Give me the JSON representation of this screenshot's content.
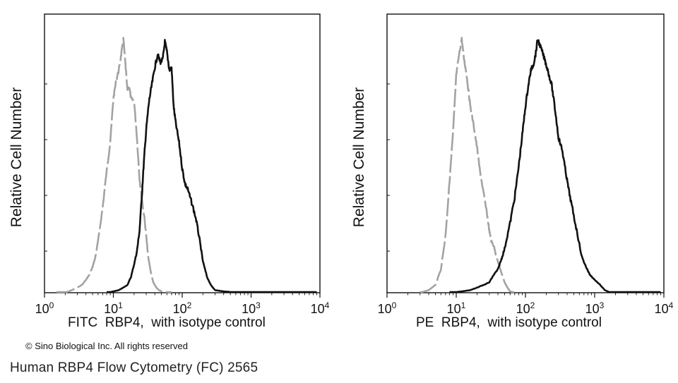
{
  "chart_data": [
    {
      "type": "line",
      "panel": "left",
      "xscale": "log",
      "xlim": [
        1,
        10000
      ],
      "xticks": [
        "10^0",
        "10^1",
        "10^2",
        "10^3",
        "10^4"
      ],
      "xlabel": "FITC  RBP4,  with isotype control",
      "ylabel": "Relative Cell Number",
      "ylim": [
        0,
        100
      ],
      "series": [
        {
          "name": "isotype control",
          "style": "dashed",
          "color": "#a3a3a3",
          "x": [
            1.5,
            2,
            2.5,
            3,
            3.5,
            4,
            4.5,
            5,
            5.5,
            6,
            7,
            8,
            9,
            10,
            11,
            12,
            13,
            14,
            15,
            16,
            17,
            18,
            20,
            22,
            24,
            26,
            28,
            30,
            32,
            35,
            38,
            42,
            46,
            50,
            60,
            70
          ],
          "y": [
            0,
            0,
            1,
            2,
            3,
            5,
            7,
            10,
            14,
            20,
            33,
            47,
            58,
            75,
            82,
            86,
            92,
            98,
            88,
            78,
            80,
            75,
            74,
            60,
            44,
            36,
            30,
            22,
            14,
            8,
            4,
            2,
            1,
            0.5,
            0,
            0
          ]
        },
        {
          "name": "RBP4",
          "style": "solid",
          "color": "#111111",
          "x": [
            8,
            10,
            12,
            14,
            16,
            18,
            20,
            22,
            24,
            26,
            28,
            30,
            33,
            36,
            40,
            44,
            48,
            52,
            56,
            60,
            65,
            70,
            75,
            80,
            90,
            100,
            110,
            120,
            140,
            160,
            180,
            200,
            230,
            260,
            300,
            400,
            700,
            1000,
            3000,
            9000
          ],
          "y": [
            0,
            0.5,
            1,
            2,
            3,
            6,
            11,
            16,
            24,
            38,
            52,
            63,
            74,
            80,
            87,
            92,
            89,
            90,
            97,
            93,
            86,
            87,
            72,
            66,
            58,
            48,
            42,
            40,
            34,
            28,
            20,
            12,
            6,
            3,
            1,
            0.5,
            0,
            0,
            0,
            0
          ]
        }
      ]
    },
    {
      "type": "line",
      "panel": "right",
      "xscale": "log",
      "xlim": [
        1,
        10000
      ],
      "xticks": [
        "10^0",
        "10^1",
        "10^2",
        "10^3",
        "10^4"
      ],
      "xlabel": "PE  RBP4,  with isotype control",
      "ylabel": "Relative Cell Number",
      "ylim": [
        0,
        100
      ],
      "series": [
        {
          "name": "isotype control",
          "style": "dashed",
          "color": "#a3a3a3",
          "x": [
            3,
            4,
            5,
            6,
            7,
            8,
            9,
            10,
            11,
            12,
            13,
            14,
            15,
            16,
            18,
            20,
            22,
            25,
            28,
            30,
            32,
            35,
            38,
            42,
            46,
            50,
            55,
            60,
            70
          ],
          "y": [
            0,
            1,
            3,
            9,
            22,
            43,
            62,
            84,
            92,
            98,
            90,
            85,
            78,
            72,
            64,
            56,
            47,
            38,
            30,
            24,
            20,
            18,
            14,
            10,
            7,
            4,
            2,
            0.5,
            0
          ]
        },
        {
          "name": "RBP4",
          "style": "solid",
          "color": "#111111",
          "x": [
            8,
            12,
            16,
            20,
            25,
            30,
            35,
            40,
            45,
            50,
            60,
            70,
            80,
            90,
            100,
            110,
            120,
            130,
            140,
            150,
            170,
            190,
            210,
            240,
            270,
            300,
            340,
            380,
            420,
            480,
            560,
            650,
            750,
            850,
            1000,
            1200,
            1400,
            1700,
            2500,
            5000,
            9000
          ],
          "y": [
            0,
            0.5,
            1,
            2,
            3,
            4,
            7,
            9,
            13,
            17,
            27,
            37,
            49,
            61,
            72,
            80,
            86,
            88,
            92,
            98,
            94,
            90,
            86,
            80,
            70,
            60,
            55,
            47,
            40,
            32,
            23,
            14,
            10,
            7,
            5,
            3,
            1,
            0,
            0,
            0,
            0
          ]
        }
      ]
    }
  ],
  "copyright": "© Sino Biological Inc. All rights reserved",
  "caption": "Human RBP4 Flow Cytometry (FC) 2565"
}
